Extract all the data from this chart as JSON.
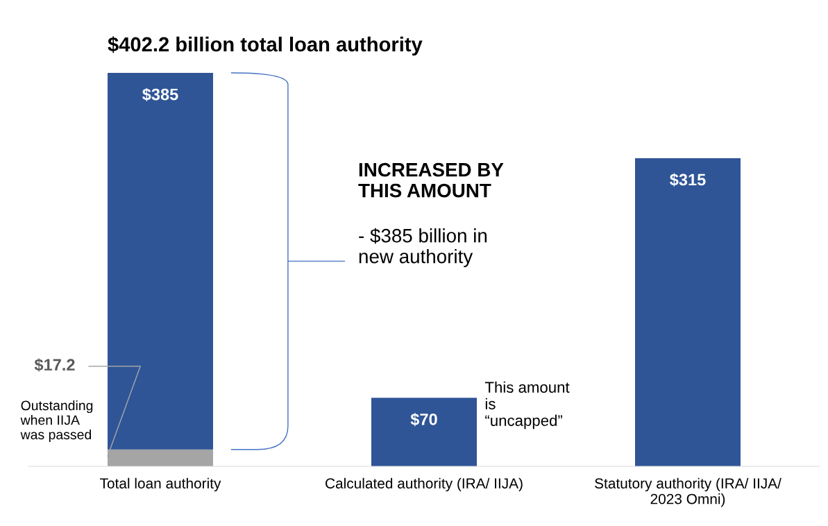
{
  "chart_data": {
    "type": "bar",
    "title": "$402.2 billion total loan authority",
    "categories": [
      "Total loan authority",
      "Calculated authority (IRA/ IIJA)",
      "Statutory authority (IRA/ IIJA/\n2023 Omni)"
    ],
    "stacked": true,
    "series": [
      {
        "color": "#a5a5a5",
        "values": [
          17.2,
          null,
          null
        ],
        "value_labels": [
          "$17.2",
          null,
          null
        ]
      },
      {
        "color": "#2f5597",
        "values": [
          385,
          70,
          315
        ],
        "value_labels": [
          "$385",
          "$70",
          "$315"
        ]
      }
    ],
    "annotations": [
      "Outstanding\nwhen IIJA\nwas passed",
      "INCREASED BY\nTHIS AMOUNT",
      "- $385 billion in\nnew authority",
      "This amount\nis\n“uncapped”"
    ],
    "grid": false,
    "legend": false
  }
}
